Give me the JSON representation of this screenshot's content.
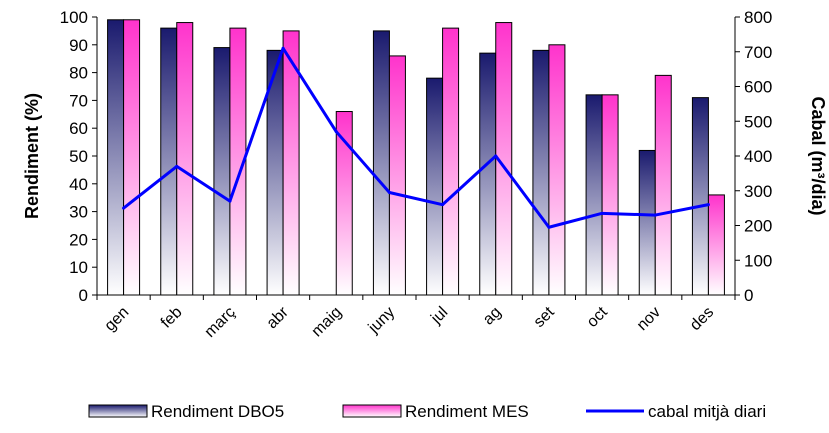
{
  "chart_data": {
    "type": "bar",
    "categories": [
      "gen",
      "feb",
      "març",
      "abr",
      "maig",
      "juny",
      "jul",
      "ag",
      "set",
      "oct",
      "nov",
      "des"
    ],
    "series": [
      {
        "name": "Rendiment DBO5",
        "axis": "left",
        "kind": "bar",
        "values": [
          99,
          96,
          89,
          88,
          null,
          95,
          78,
          87,
          88,
          72,
          52,
          71
        ]
      },
      {
        "name": "Rendiment MES",
        "axis": "left",
        "kind": "bar",
        "values": [
          99,
          98,
          96,
          95,
          66,
          86,
          96,
          98,
          90,
          72,
          79,
          36
        ]
      },
      {
        "name": "cabal mitjà diari",
        "axis": "right",
        "kind": "line",
        "values": [
          250,
          370,
          270,
          710,
          470,
          295,
          260,
          400,
          195,
          235,
          230,
          260
        ]
      }
    ],
    "ylabel_left": "Rendiment (%)",
    "ylabel_right": "Cabal (m³/dia)",
    "ylim_left": [
      0,
      100
    ],
    "ylim_right": [
      0,
      800
    ],
    "yticks_left": [
      "0",
      "10",
      "20",
      "30",
      "40",
      "50",
      "60",
      "70",
      "80",
      "90",
      "100"
    ],
    "yticks_right": [
      "0",
      "100",
      "200",
      "300",
      "400",
      "500",
      "600",
      "700",
      "800"
    ],
    "legend_position": "bottom",
    "grid": false,
    "colors": {
      "dbo5_top": "#1a1a6e",
      "dbo5_bottom": "#ffffff",
      "mes_top": "#ff33cc",
      "mes_bottom": "#ffffff",
      "line": "#0000ff",
      "axis": "#000000"
    }
  }
}
